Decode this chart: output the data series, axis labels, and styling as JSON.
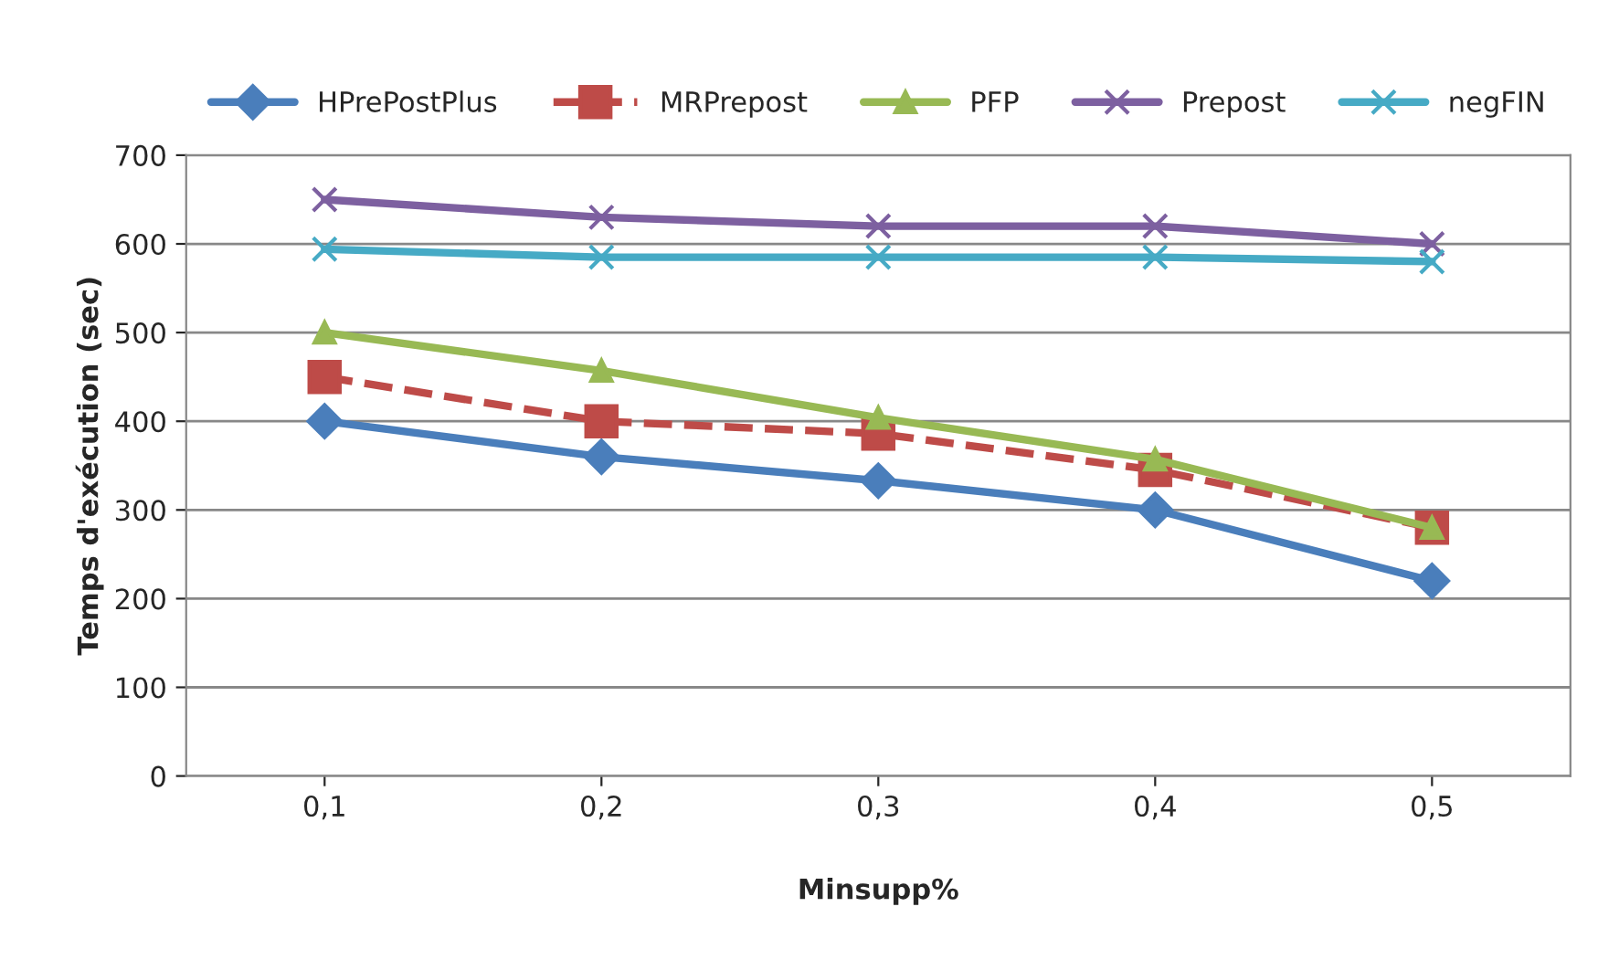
{
  "chart_data": {
    "type": "line",
    "xlabel": "Minsupp%",
    "ylabel": "Temps d'exécution (sec)",
    "categories": [
      "0,1",
      "0,2",
      "0,3",
      "0,4",
      "0,5"
    ],
    "series": [
      {
        "name": "HPrePostPlus",
        "color": "#4a7ebb",
        "marker": "diamond",
        "line_style": "solid",
        "values": [
          400,
          360,
          333,
          300,
          220
        ]
      },
      {
        "name": "MRPrepost",
        "color": "#be4b48",
        "marker": "square",
        "line_style": "dashed",
        "values": [
          450,
          400,
          386,
          345,
          280
        ]
      },
      {
        "name": "PFP",
        "color": "#98b954",
        "marker": "triangle",
        "line_style": "solid",
        "values": [
          500,
          457,
          404,
          357,
          280
        ]
      },
      {
        "name": "Prepost",
        "color": "#7d60a0",
        "marker": "cross",
        "line_style": "solid",
        "values": [
          650,
          630,
          620,
          620,
          600
        ]
      },
      {
        "name": "negFIN",
        "color": "#46aac5",
        "marker": "cross",
        "line_style": "solid",
        "values": [
          594,
          585,
          585,
          585,
          580
        ]
      }
    ],
    "ylim": [
      0,
      700
    ],
    "yticks": [
      0,
      100,
      200,
      300,
      400,
      500,
      600,
      700
    ],
    "grid": "y",
    "legend": "top"
  }
}
